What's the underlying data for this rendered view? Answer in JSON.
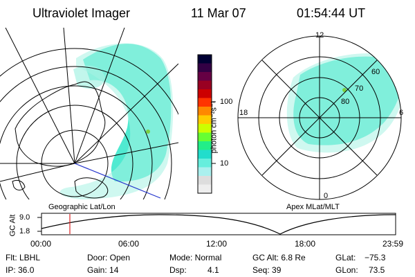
{
  "header": {
    "instrument": "Ultraviolet Imager",
    "date": "11 Mar 07",
    "time": "01:54:44 UT"
  },
  "colorbar": {
    "label": "photon cm⁻²s⁻¹",
    "ticks": [
      "100",
      "10"
    ],
    "colors": [
      "#000033",
      "#330044",
      "#660044",
      "#990022",
      "#cc0000",
      "#ff3300",
      "#ff8800",
      "#ffcc00",
      "#ccff00",
      "#66ff33",
      "#22ee88",
      "#22ddcc",
      "#66eedd",
      "#aaf0ee",
      "#dddddd",
      "#eeeeee"
    ]
  },
  "left_map": {
    "caption": "Geographic Lat/Lon"
  },
  "right_map": {
    "caption": "Apex MLat/MLT",
    "mlt_labels": [
      "12",
      "18",
      "6",
      "0"
    ],
    "lat_labels": [
      "60",
      "70",
      "80"
    ]
  },
  "altitude_plot": {
    "axis_label": "GC Alt",
    "y_ticks": [
      "9.0",
      "1.8"
    ],
    "x_ticks": [
      "00:00",
      "06:00",
      "12:00",
      "18:00",
      "23:59"
    ]
  },
  "info": {
    "flt": "Flt: LBHL",
    "ip": "IP: 36.0",
    "door": "Door: Open",
    "gain": "Gain: 14",
    "mode": "Mode: Normal",
    "dsp_label": "Dsp:",
    "dsp_value": "4.1",
    "gc_alt": "GC Alt: 6.8 Re",
    "seq": "Seq: 39",
    "glat_label": "GLat:",
    "glat_value": "−75.3",
    "glon_label": "GLon:",
    "glon_value": "73.5"
  },
  "palette": {
    "aurora_main": "#3de8cc",
    "aurora_light": "#a8f2e4",
    "aurora_green": "#7ad040",
    "track_line": "#2233cc",
    "marker": "#dd2222"
  }
}
